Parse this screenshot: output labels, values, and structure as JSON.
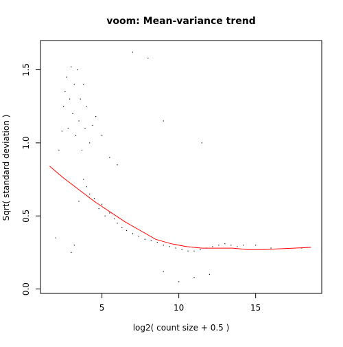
{
  "chart_data": {
    "type": "scatter",
    "title": "voom: Mean-variance trend",
    "xlabel": "log2( count size + 0.5 )",
    "ylabel": "Sqrt( standard deviation )",
    "xlim": [
      1.0,
      19.3
    ],
    "ylim": [
      -0.03,
      1.7
    ],
    "x_ticks": [
      {
        "value": 5,
        "label": "5"
      },
      {
        "value": 10,
        "label": "10"
      },
      {
        "value": 15,
        "label": "15"
      }
    ],
    "y_ticks": [
      {
        "value": 0.0,
        "label": "0.0"
      },
      {
        "value": 0.5,
        "label": "0.5"
      },
      {
        "value": 1.0,
        "label": "1.0"
      },
      {
        "value": 1.5,
        "label": "1.5"
      }
    ],
    "grid": false,
    "series": [
      {
        "name": "",
        "kind": "points",
        "color": "#000000",
        "note_points_sampled": true,
        "points": [
          [
            2.0,
            0.35
          ],
          [
            2.2,
            0.95
          ],
          [
            2.4,
            1.08
          ],
          [
            2.5,
            1.25
          ],
          [
            2.6,
            1.35
          ],
          [
            2.7,
            1.45
          ],
          [
            2.8,
            1.1
          ],
          [
            2.9,
            1.3
          ],
          [
            3.0,
            1.52
          ],
          [
            3.1,
            1.2
          ],
          [
            3.2,
            1.4
          ],
          [
            3.3,
            1.05
          ],
          [
            3.4,
            1.5
          ],
          [
            3.5,
            1.15
          ],
          [
            3.6,
            1.3
          ],
          [
            3.7,
            0.95
          ],
          [
            3.8,
            1.4
          ],
          [
            3.9,
            1.1
          ],
          [
            4.0,
            1.25
          ],
          [
            4.2,
            1.0
          ],
          [
            4.4,
            1.12
          ],
          [
            4.6,
            1.18
          ],
          [
            5.0,
            1.05
          ],
          [
            5.5,
            0.9
          ],
          [
            6.0,
            0.85
          ],
          [
            3.0,
            0.25
          ],
          [
            3.2,
            0.3
          ],
          [
            3.5,
            0.6
          ],
          [
            3.8,
            0.75
          ],
          [
            4.0,
            0.7
          ],
          [
            4.2,
            0.65
          ],
          [
            4.5,
            0.62
          ],
          [
            4.8,
            0.55
          ],
          [
            5.0,
            0.58
          ],
          [
            5.2,
            0.5
          ],
          [
            5.5,
            0.52
          ],
          [
            5.8,
            0.48
          ],
          [
            6.0,
            0.45
          ],
          [
            6.3,
            0.42
          ],
          [
            6.6,
            0.4
          ],
          [
            7.0,
            0.38
          ],
          [
            7.4,
            0.36
          ],
          [
            7.8,
            0.34
          ],
          [
            8.2,
            0.33
          ],
          [
            8.6,
            0.32
          ],
          [
            9.0,
            0.3
          ],
          [
            9.4,
            0.29
          ],
          [
            9.8,
            0.28
          ],
          [
            10.2,
            0.27
          ],
          [
            10.6,
            0.26
          ],
          [
            11.0,
            0.26
          ],
          [
            11.4,
            0.27
          ],
          [
            11.8,
            0.28
          ],
          [
            12.2,
            0.29
          ],
          [
            12.6,
            0.3
          ],
          [
            13.0,
            0.31
          ],
          [
            13.4,
            0.3
          ],
          [
            13.8,
            0.29
          ],
          [
            14.2,
            0.3
          ],
          [
            15.0,
            0.3
          ],
          [
            16.0,
            0.28
          ],
          [
            18.0,
            0.28
          ],
          [
            7.0,
            1.62
          ],
          [
            8.0,
            1.58
          ],
          [
            9.0,
            1.15
          ],
          [
            11.5,
            1.0
          ],
          [
            10.0,
            0.05
          ],
          [
            11.0,
            0.08
          ],
          [
            12.0,
            0.1
          ],
          [
            9.0,
            0.12
          ]
        ]
      },
      {
        "name": "",
        "kind": "trend-line",
        "color": "#ff0000",
        "points": [
          [
            1.6,
            0.84
          ],
          [
            2.5,
            0.76
          ],
          [
            3.5,
            0.68
          ],
          [
            4.5,
            0.6
          ],
          [
            5.5,
            0.53
          ],
          [
            6.5,
            0.46
          ],
          [
            7.5,
            0.4
          ],
          [
            8.5,
            0.34
          ],
          [
            9.5,
            0.31
          ],
          [
            10.5,
            0.29
          ],
          [
            11.5,
            0.28
          ],
          [
            12.5,
            0.28
          ],
          [
            13.5,
            0.28
          ],
          [
            14.5,
            0.27
          ],
          [
            15.5,
            0.27
          ],
          [
            16.5,
            0.275
          ],
          [
            17.5,
            0.28
          ],
          [
            18.6,
            0.285
          ]
        ]
      }
    ]
  }
}
